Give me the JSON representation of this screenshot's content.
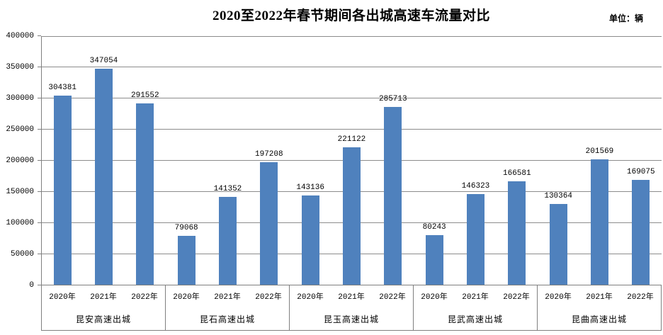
{
  "chart_data": {
    "type": "bar",
    "title": "2020至2022年春节期间各出城高速车流量对比",
    "unit": "单位：辆",
    "categories": [
      "昆安高速出城",
      "昆石高速出城",
      "昆玉高速出城",
      "昆武高速出城",
      "昆曲高速出城"
    ],
    "series": [
      {
        "name": "2020年",
        "values": [
          304381,
          79068,
          143136,
          80243,
          130364
        ]
      },
      {
        "name": "2021年",
        "values": [
          347054,
          141352,
          221122,
          146323,
          201569
        ]
      },
      {
        "name": "2022年",
        "values": [
          291552,
          197208,
          285713,
          166581,
          169075
        ]
      }
    ],
    "xlabel": "",
    "ylabel": "",
    "ylim": [
      0,
      400000
    ],
    "ytick_step": 50000,
    "yticks": [
      0,
      50000,
      100000,
      150000,
      200000,
      250000,
      300000,
      350000,
      400000
    ],
    "grid": true,
    "legend": "none",
    "data_labels": true,
    "bar_color": "#4F81BD",
    "gridline_color": "#8C8C8C",
    "axis_color": "#7F7F7F"
  }
}
